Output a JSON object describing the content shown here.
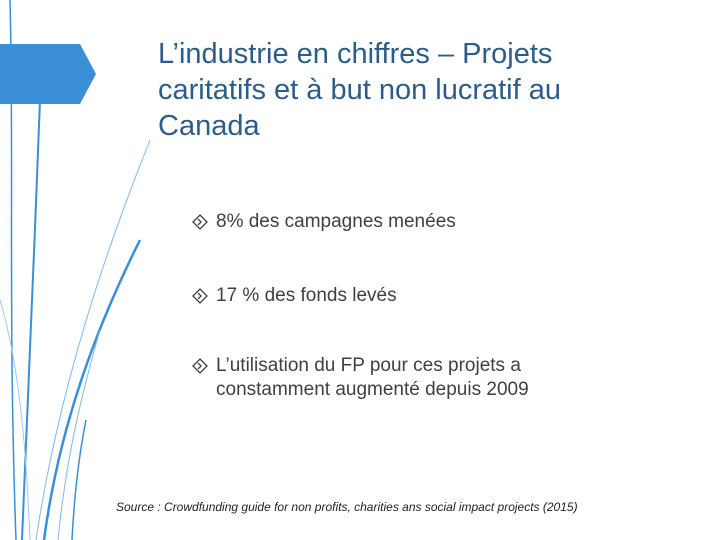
{
  "slide": {
    "title_lines": [
      "L’industrie en chiffres – Projets",
      "caritatifs et à but non lucratif au",
      "Canada"
    ],
    "bullets": [
      {
        "lines": [
          "8% des campagnes menées"
        ]
      },
      {
        "lines": [
          "17 % des fonds levés"
        ]
      },
      {
        "lines": [
          "L’utilisation du FP pour ces projets a",
          "constamment augmenté depuis 2009"
        ]
      }
    ],
    "source": "Source : Crowdfunding guide for non profits, charities ans social impact projects (2015)"
  },
  "theme": {
    "accent": "#3a8fd6",
    "title_color": "#2c5d8a",
    "text_color": "#404040",
    "bullet_icon": "diamond-arrow-icon"
  }
}
